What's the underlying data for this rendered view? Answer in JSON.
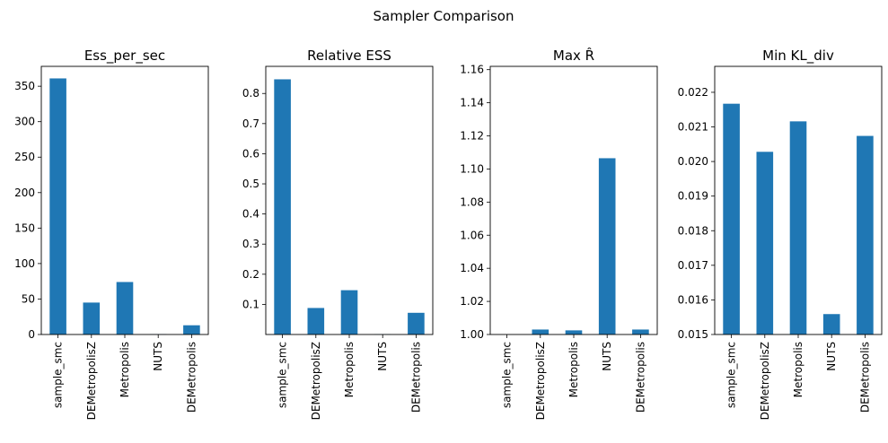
{
  "figure": {
    "suptitle": "Sampler Comparison"
  },
  "colors": {
    "bar": "#1f77b4"
  },
  "chart_data": [
    {
      "type": "bar",
      "title": "Ess_per_sec",
      "categories": [
        "sample_smc",
        "DEMetropolisZ",
        "Metropolis",
        "NUTS",
        "DEMetropolis"
      ],
      "values": [
        361,
        45,
        74,
        0.5,
        13
      ],
      "ylim": [
        0,
        378
      ],
      "yticks": [
        0,
        50,
        100,
        150,
        200,
        250,
        300,
        350
      ],
      "ytick_labels": [
        "0",
        "50",
        "100",
        "150",
        "200",
        "250",
        "300",
        "350"
      ]
    },
    {
      "type": "bar",
      "title": "Relative ESS",
      "categories": [
        "sample_smc",
        "DEMetropolisZ",
        "Metropolis",
        "NUTS",
        "DEMetropolis"
      ],
      "values": [
        0.847,
        0.088,
        0.147,
        0.001,
        0.072
      ],
      "ylim": [
        0,
        0.89
      ],
      "yticks": [
        0.1,
        0.2,
        0.3,
        0.4,
        0.5,
        0.6,
        0.7,
        0.8
      ],
      "ytick_labels": [
        "0.1",
        "0.2",
        "0.3",
        "0.4",
        "0.5",
        "0.6",
        "0.7",
        "0.8"
      ]
    },
    {
      "type": "bar",
      "title": "Max R̂",
      "categories": [
        "sample_smc",
        "DEMetropolisZ",
        "Metropolis",
        "NUTS",
        "DEMetropolis"
      ],
      "values": [
        1.0,
        1.003,
        1.0025,
        1.1065,
        1.003
      ],
      "ylim": [
        1.0,
        1.162
      ],
      "yticks": [
        1.0,
        1.02,
        1.04,
        1.06,
        1.08,
        1.1,
        1.12,
        1.14,
        1.16
      ],
      "ytick_labels": [
        "1.00",
        "1.02",
        "1.04",
        "1.06",
        "1.08",
        "1.10",
        "1.12",
        "1.14",
        "1.16"
      ]
    },
    {
      "type": "bar",
      "title": "Min KL_div",
      "categories": [
        "sample_smc",
        "DEMetropolisZ",
        "Metropolis",
        "NUTS",
        "DEMetropolis"
      ],
      "values": [
        0.02167,
        0.02028,
        0.02116,
        0.01559,
        0.02074
      ],
      "ylim": [
        0.015,
        0.02275
      ],
      "yticks": [
        0.015,
        0.016,
        0.017,
        0.018,
        0.019,
        0.02,
        0.021,
        0.022
      ],
      "ytick_labels": [
        "0.015",
        "0.016",
        "0.017",
        "0.018",
        "0.019",
        "0.020",
        "0.021",
        "0.022"
      ]
    }
  ]
}
